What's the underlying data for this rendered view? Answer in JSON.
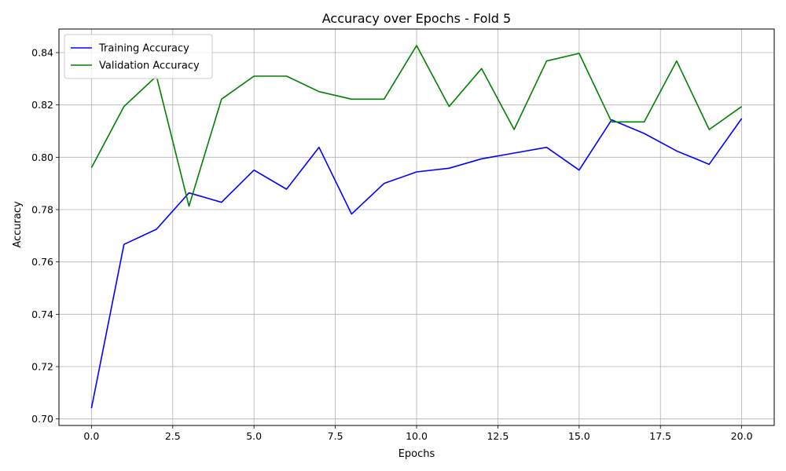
{
  "chart_data": {
    "type": "line",
    "title": "Accuracy over Epochs - Fold 5",
    "xlabel": "Epochs",
    "ylabel": "Accuracy",
    "xlim": [
      -1,
      21
    ],
    "ylim": [
      0.6975,
      0.849
    ],
    "xticks": [
      0.0,
      2.5,
      5.0,
      7.5,
      10.0,
      12.5,
      15.0,
      17.5,
      20.0
    ],
    "xtick_labels": [
      "0.0",
      "2.5",
      "5.0",
      "7.5",
      "10.0",
      "12.5",
      "15.0",
      "17.5",
      "20.0"
    ],
    "yticks": [
      0.7,
      0.72,
      0.74,
      0.76,
      0.78,
      0.8,
      0.82,
      0.84
    ],
    "ytick_labels": [
      "0.70",
      "0.72",
      "0.74",
      "0.76",
      "0.78",
      "0.80",
      "0.82",
      "0.84"
    ],
    "grid": true,
    "legend_position": "top-left",
    "x": [
      0,
      1,
      2,
      3,
      4,
      5,
      6,
      7,
      8,
      9,
      10,
      11,
      12,
      13,
      14,
      15,
      16,
      17,
      18,
      19,
      20
    ],
    "series": [
      {
        "name": "Training Accuracy",
        "color": "#0000ff",
        "values": [
          0.7041,
          0.7667,
          0.7725,
          0.7864,
          0.7828,
          0.7951,
          0.7878,
          0.8038,
          0.7783,
          0.79,
          0.7944,
          0.7958,
          0.7994,
          0.8016,
          0.8038,
          0.7951,
          0.8143,
          0.8091,
          0.8024,
          0.7973,
          0.8148
        ]
      },
      {
        "name": "Validation Accuracy",
        "color": "#008000",
        "values": [
          0.796,
          0.8194,
          0.831,
          0.7813,
          0.8222,
          0.831,
          0.831,
          0.8251,
          0.8222,
          0.8222,
          0.8427,
          0.8194,
          0.8339,
          0.8106,
          0.8368,
          0.8397,
          0.8135,
          0.8135,
          0.8368,
          0.8106,
          0.8194
        ]
      }
    ]
  }
}
